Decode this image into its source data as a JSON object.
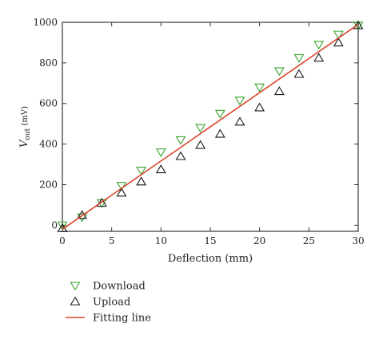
{
  "chart_data": {
    "type": "scatter",
    "xlabel": "Deflection (mm)",
    "ylabel_main": "V",
    "ylabel_sub": "out",
    "ylabel_unit": " (mV)",
    "xlim": [
      0,
      30
    ],
    "ylim": [
      -30,
      1000
    ],
    "x_ticks": [
      0,
      5,
      10,
      15,
      20,
      25,
      30
    ],
    "y_ticks": [
      0,
      200,
      400,
      600,
      800,
      1000
    ],
    "grid": false,
    "legend_position": "below",
    "series": [
      {
        "name": "Download",
        "marker": "triangle-down",
        "color": "#3aa52e",
        "x": [
          0,
          2,
          4,
          6,
          8,
          10,
          12,
          14,
          16,
          18,
          20,
          22,
          24,
          26,
          28,
          30
        ],
        "y": [
          0,
          40,
          110,
          195,
          270,
          360,
          420,
          480,
          550,
          615,
          680,
          760,
          825,
          890,
          940,
          985
        ]
      },
      {
        "name": "Upload",
        "marker": "triangle-up",
        "color": "#1a1a1a",
        "x": [
          0,
          2,
          4,
          6,
          8,
          10,
          12,
          14,
          16,
          18,
          20,
          22,
          24,
          26,
          28,
          30
        ],
        "y": [
          -15,
          50,
          110,
          160,
          215,
          275,
          340,
          395,
          450,
          510,
          580,
          660,
          745,
          825,
          900,
          985
        ]
      },
      {
        "name": "Fitting line",
        "type": "line",
        "color": "#d9442b",
        "x": [
          0,
          30
        ],
        "y": [
          -20,
          990
        ]
      }
    ]
  }
}
